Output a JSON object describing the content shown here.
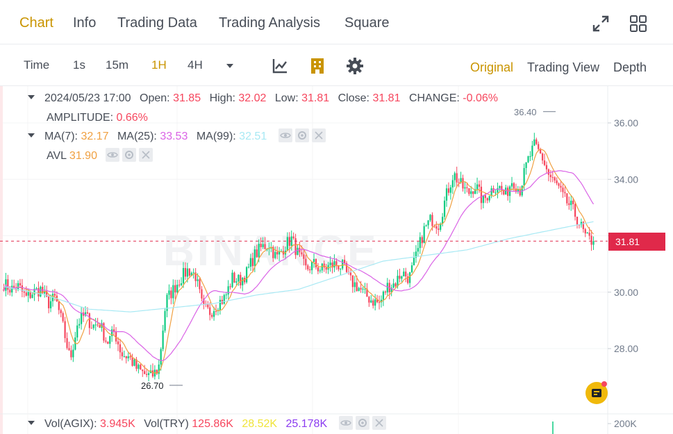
{
  "nav": {
    "tabs": [
      {
        "label": "Chart",
        "active": true
      },
      {
        "label": "Info",
        "active": false
      },
      {
        "label": "Trading Data",
        "active": false
      },
      {
        "label": "Trading Analysis",
        "active": false
      },
      {
        "label": "Square",
        "active": false
      }
    ],
    "icons": [
      "expand-icon",
      "grid-layout-icon"
    ]
  },
  "toolbar": {
    "intervals": [
      {
        "label": "Time",
        "active": false
      },
      {
        "label": "1s",
        "active": false
      },
      {
        "label": "15m",
        "active": false
      },
      {
        "label": "1H",
        "active": true
      },
      {
        "label": "4H",
        "active": false
      }
    ],
    "tool_icons": [
      "interval-dropdown-icon",
      "indicators-icon",
      "drawing-tools-icon",
      "settings-icon"
    ],
    "views": [
      {
        "label": "Original",
        "active": true
      },
      {
        "label": "Trading View",
        "active": false
      },
      {
        "label": "Depth",
        "active": false
      }
    ]
  },
  "legend": {
    "ohlc": {
      "date": "2024/05/23 17:00",
      "open_label": "Open:",
      "open": "31.85",
      "high_label": "High:",
      "high": "32.02",
      "low_label": "Low:",
      "low": "31.81",
      "close_label": "Close:",
      "close": "31.81",
      "change_label": "CHANGE:",
      "change": "-0.06%",
      "amplitude_label": "AMPLITUDE:",
      "amplitude": "0.66%"
    },
    "ma": {
      "ma7_label": "MA(7):",
      "ma7": "32.17",
      "ma25_label": "MA(25):",
      "ma25": "33.53",
      "ma99_label": "MA(99):",
      "ma99": "32.51",
      "avl_label": "AVL",
      "avl": "31.90"
    },
    "vol": {
      "agix_label": "Vol(AGIX):",
      "agix": "3.945K",
      "try_label": "Vol(TRY)",
      "try": "125.86K",
      "v1": "28.52K",
      "v2": "25.178K"
    }
  },
  "colors": {
    "up": "#0ecb81",
    "down": "#f6465d",
    "accent": "#c99400",
    "ma7": "#f0a041",
    "ma25": "#da63e6",
    "ma99": "#a8e9f4",
    "vol_v1": "#f0e43a",
    "vol_v2": "#8b3bf0"
  },
  "chart_data": {
    "type": "candlestick",
    "interval": "1H",
    "y_axis_ticks": [
      "36.00",
      "34.00",
      "32.00",
      "30.00",
      "28.00"
    ],
    "y_range": [
      26.2,
      36.8
    ],
    "current_price": "31.81",
    "max_marker": "36.40",
    "min_marker": "26.70",
    "volume_axis_tick": "200K",
    "watermark": "BINANCE",
    "anchor_closes": [
      30.3,
      30.1,
      30.2,
      29.8,
      30.0,
      30.1,
      29.6,
      29.8,
      28.8,
      27.6,
      28.9,
      29.2,
      28.8,
      28.9,
      28.2,
      28.6,
      27.8,
      27.7,
      27.3,
      27.1,
      27.0,
      27.3,
      29.7,
      30.1,
      30.5,
      30.8,
      30.6,
      29.4,
      29.3,
      29.6,
      29.8,
      30.5,
      30.4,
      30.7,
      31.3,
      31.6,
      31.7,
      31.2,
      31.6,
      31.9,
      31.3,
      30.8,
      31.0,
      30.8,
      30.9,
      31.0,
      30.9,
      30.4,
      30.2,
      29.9,
      29.7,
      29.6,
      30.2,
      30.3,
      30.7,
      30.5,
      31.3,
      32.2,
      32.6,
      32.4,
      33.4,
      34.2,
      33.8,
      33.5,
      33.8,
      33.2,
      33.6,
      33.8,
      33.4,
      34.0,
      33.6,
      34.6,
      35.2,
      34.8,
      34.1,
      33.8,
      33.3,
      33.0,
      32.5,
      31.9,
      31.8
    ],
    "ma99_anchors": [
      30.2,
      29.9,
      29.4,
      29.3,
      29.45,
      29.6,
      29.9,
      30.1,
      30.6,
      31.1,
      31.3,
      31.5,
      31.9,
      32.2,
      32.5
    ]
  }
}
